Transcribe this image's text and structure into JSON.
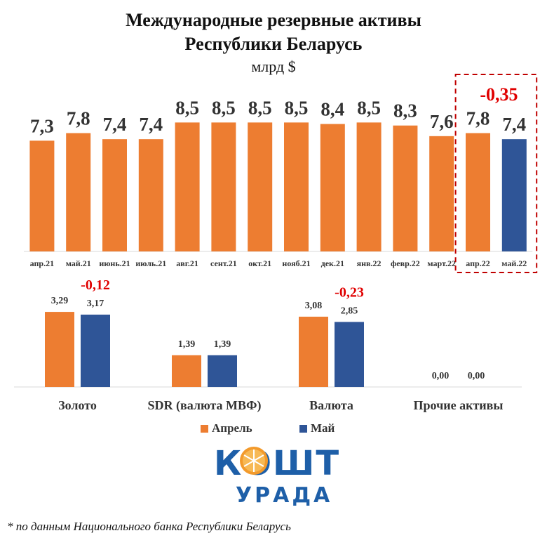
{
  "header": {
    "title_line1": "Международные резервные активы",
    "title_line2": "Республики Беларусь",
    "unit": "млрд $"
  },
  "colors": {
    "april": "#ED7D31",
    "may": "#2F5597",
    "delta": "#E00000",
    "text": "#333333"
  },
  "chart_data": [
    {
      "type": "bar",
      "categories": [
        "апр.21",
        "май.21",
        "июнь.21",
        "июль.21",
        "авг.21",
        "сент.21",
        "окт.21",
        "нояб.21",
        "дек.21",
        "янв.22",
        "февр.22",
        "март.22",
        "апр.22",
        "май.22"
      ],
      "values": [
        7.3,
        7.8,
        7.4,
        7.4,
        8.5,
        8.5,
        8.5,
        8.5,
        8.4,
        8.5,
        8.3,
        7.6,
        7.8,
        7.4
      ],
      "value_labels": [
        "7,3",
        "7,8",
        "7,4",
        "7,4",
        "8,5",
        "8,5",
        "8,5",
        "8,5",
        "8,4",
        "8,5",
        "8,3",
        "7,6",
        "7,8",
        "7,4"
      ],
      "highlight_last": 1,
      "annotation": "-0,35",
      "ylim": [
        0,
        9
      ]
    },
    {
      "type": "bar",
      "categories": [
        "Золото",
        "SDR (валюта МВФ)",
        "Валюта",
        "Прочие активы"
      ],
      "series": [
        {
          "name": "Апрель",
          "values": [
            3.29,
            1.39,
            3.08,
            0.0
          ],
          "labels": [
            "3,29",
            "1,39",
            "3,08",
            "0,00"
          ]
        },
        {
          "name": "Май",
          "values": [
            3.17,
            1.39,
            2.85,
            0.0
          ],
          "labels": [
            "3,17",
            "1,39",
            "2,85",
            "0,00"
          ]
        }
      ],
      "deltas": [
        "-0,12",
        "",
        "-0,23",
        ""
      ],
      "ylim": [
        0,
        3.5
      ],
      "legend": "bottom"
    }
  ],
  "logo": {
    "line1": "КОШТ",
    "line2": "УРАДА"
  },
  "footnote": "* по данным Национального банка Республики Беларусь"
}
